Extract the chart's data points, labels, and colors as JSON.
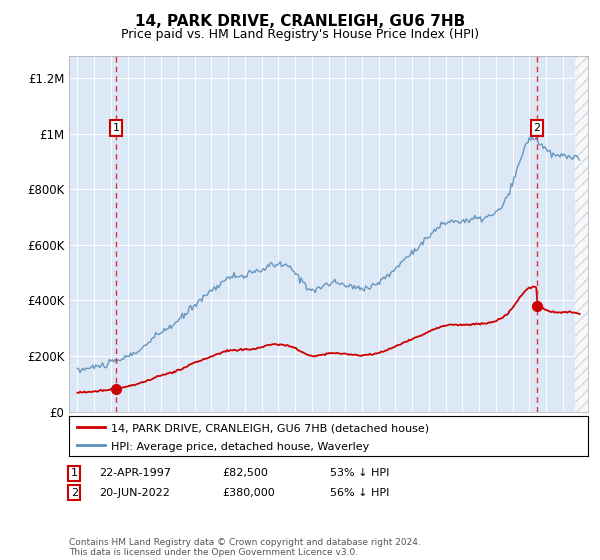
{
  "title": "14, PARK DRIVE, CRANLEIGH, GU6 7HB",
  "subtitle": "Price paid vs. HM Land Registry's House Price Index (HPI)",
  "ylabel_ticks": [
    "£0",
    "£200K",
    "£400K",
    "£600K",
    "£800K",
    "£1M",
    "£1.2M"
  ],
  "ytick_values": [
    0,
    200000,
    400000,
    600000,
    800000,
    1000000,
    1200000
  ],
  "ylim": [
    0,
    1280000
  ],
  "xlim_start": 1994.5,
  "xlim_end": 2025.5,
  "sale1_date": 1997.31,
  "sale1_price": 82500,
  "sale1_label": "1",
  "sale2_date": 2022.46,
  "sale2_price": 380000,
  "sale2_label": "2",
  "red_color": "#cc0000",
  "blue_color": "#5b8db8",
  "dashed_color": "#dd3333",
  "plot_bg": "#dce8f5",
  "legend_entry1": "14, PARK DRIVE, CRANLEIGH, GU6 7HB (detached house)",
  "legend_entry2": "HPI: Average price, detached house, Waverley",
  "ann1_date": "22-APR-1997",
  "ann1_price": "£82,500",
  "ann1_hpi": "53% ↓ HPI",
  "ann2_date": "20-JUN-2022",
  "ann2_price": "£380,000",
  "ann2_hpi": "56% ↓ HPI",
  "footer": "Contains HM Land Registry data © Crown copyright and database right 2024.\nThis data is licensed under the Open Government Licence v3.0.",
  "title_fontsize": 11,
  "subtitle_fontsize": 9,
  "hpi_years": [
    1995,
    1996,
    1997,
    1998,
    1999,
    2000,
    2001,
    2002,
    2003,
    2004,
    2005,
    2006,
    2007,
    2008,
    2009,
    2010,
    2011,
    2012,
    2013,
    2014,
    2015,
    2016,
    2017,
    2018,
    2019,
    2020,
    2021,
    2022,
    2023,
    2024,
    2025
  ],
  "hpi_prices": [
    148000,
    160000,
    175000,
    198000,
    235000,
    285000,
    325000,
    385000,
    435000,
    480000,
    490000,
    510000,
    530000,
    500000,
    440000,
    460000,
    455000,
    445000,
    465000,
    515000,
    575000,
    630000,
    680000,
    685000,
    695000,
    715000,
    820000,
    980000,
    940000,
    920000,
    905000
  ]
}
